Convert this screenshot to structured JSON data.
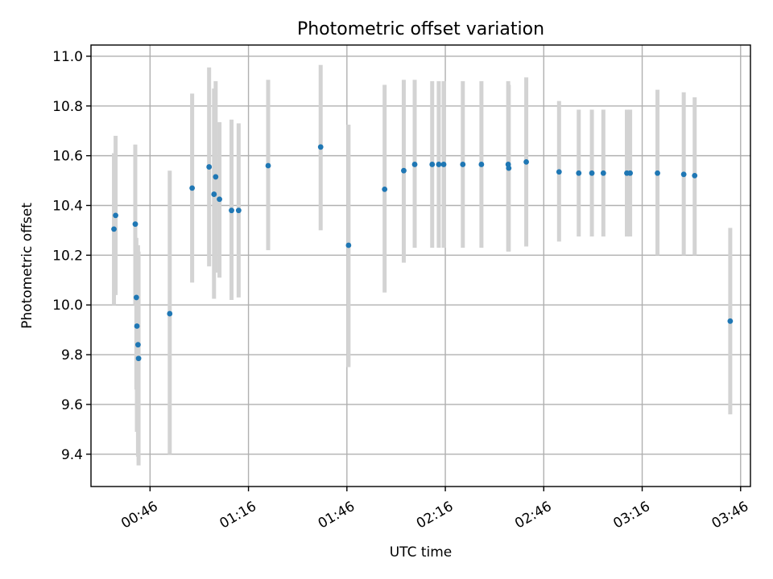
{
  "chart_data": {
    "type": "scatter",
    "title": "Photometric offset variation",
    "xlabel": "UTC time",
    "ylabel": "Photometric offset",
    "xlim": [
      "00:28",
      "03:49"
    ],
    "ylim": [
      9.27,
      11.045
    ],
    "x_ticks": [
      "00:46",
      "01:16",
      "01:46",
      "02:16",
      "02:46",
      "03:16",
      "03:46"
    ],
    "y_ticks": [
      "9.4",
      "9.6",
      "9.8",
      "10.0",
      "10.2",
      "10.4",
      "10.6",
      "10.8",
      "11.0"
    ],
    "grid": true,
    "colors": {
      "point": "#1f77b4",
      "error_bar": "#d3d3d3",
      "grid": "#b0b0b0"
    },
    "points": [
      {
        "x": "00:35:00",
        "y": 10.305,
        "err": [
          10.0,
          10.61
        ]
      },
      {
        "x": "00:35:30",
        "y": 10.36,
        "err": [
          10.04,
          10.68
        ]
      },
      {
        "x": "00:41:30",
        "y": 10.325,
        "err": [
          10.0,
          10.645
        ]
      },
      {
        "x": "00:41:50",
        "y": 10.03,
        "err": [
          9.66,
          10.27
        ]
      },
      {
        "x": "00:42:00",
        "y": 9.915,
        "err": [
          9.49,
          10.22
        ]
      },
      {
        "x": "00:42:20",
        "y": 9.84,
        "err": [
          9.39,
          10.24
        ]
      },
      {
        "x": "00:42:30",
        "y": 9.785,
        "err": [
          9.355,
          10.215
        ]
      },
      {
        "x": "00:52:00",
        "y": 9.965,
        "err": [
          9.4,
          10.54
        ]
      },
      {
        "x": "00:58:50",
        "y": 10.47,
        "err": [
          10.09,
          10.85
        ]
      },
      {
        "x": "01:04:00",
        "y": 10.555,
        "err": [
          10.155,
          10.955
        ]
      },
      {
        "x": "01:05:30",
        "y": 10.445,
        "err": [
          10.025,
          10.87
        ]
      },
      {
        "x": "01:06:00",
        "y": 10.515,
        "err": [
          10.13,
          10.9
        ]
      },
      {
        "x": "01:07:10",
        "y": 10.425,
        "err": [
          10.11,
          10.735
        ]
      },
      {
        "x": "01:10:50",
        "y": 10.38,
        "err": [
          10.02,
          10.745
        ]
      },
      {
        "x": "01:13:00",
        "y": 10.38,
        "err": [
          10.03,
          10.73
        ]
      },
      {
        "x": "01:22:00",
        "y": 10.56,
        "err": [
          10.22,
          10.905
        ]
      },
      {
        "x": "01:38:00",
        "y": 10.635,
        "err": [
          10.3,
          10.965
        ]
      },
      {
        "x": "01:46:30",
        "y": 10.24,
        "err": [
          9.75,
          10.725
        ]
      },
      {
        "x": "01:57:30",
        "y": 10.465,
        "err": [
          10.05,
          10.885
        ]
      },
      {
        "x": "02:03:20",
        "y": 10.54,
        "err": [
          10.17,
          10.905
        ]
      },
      {
        "x": "02:06:40",
        "y": 10.565,
        "err": [
          10.23,
          10.905
        ]
      },
      {
        "x": "02:12:00",
        "y": 10.565,
        "err": [
          10.23,
          10.9
        ]
      },
      {
        "x": "02:14:00",
        "y": 10.565,
        "err": [
          10.23,
          10.9
        ]
      },
      {
        "x": "02:15:30",
        "y": 10.565,
        "err": [
          10.23,
          10.9
        ]
      },
      {
        "x": "02:21:20",
        "y": 10.565,
        "err": [
          10.23,
          10.9
        ]
      },
      {
        "x": "02:27:00",
        "y": 10.565,
        "err": [
          10.23,
          10.9
        ]
      },
      {
        "x": "02:35:10",
        "y": 10.565,
        "err": [
          10.215,
          10.9
        ]
      },
      {
        "x": "02:35:20",
        "y": 10.55,
        "err": [
          10.215,
          10.885
        ]
      },
      {
        "x": "02:40:40",
        "y": 10.575,
        "err": [
          10.235,
          10.915
        ]
      },
      {
        "x": "02:50:40",
        "y": 10.535,
        "err": [
          10.255,
          10.82
        ]
      },
      {
        "x": "02:56:40",
        "y": 10.53,
        "err": [
          10.275,
          10.785
        ]
      },
      {
        "x": "03:00:40",
        "y": 10.53,
        "err": [
          10.275,
          10.785
        ]
      },
      {
        "x": "03:04:10",
        "y": 10.53,
        "err": [
          10.275,
          10.785
        ]
      },
      {
        "x": "03:11:20",
        "y": 10.53,
        "err": [
          10.275,
          10.785
        ]
      },
      {
        "x": "03:12:20",
        "y": 10.53,
        "err": [
          10.275,
          10.785
        ]
      },
      {
        "x": "03:20:40",
        "y": 10.53,
        "err": [
          10.2,
          10.865
        ]
      },
      {
        "x": "03:28:40",
        "y": 10.525,
        "err": [
          10.2,
          10.855
        ]
      },
      {
        "x": "03:32:00",
        "y": 10.52,
        "err": [
          10.2,
          10.835
        ]
      },
      {
        "x": "03:42:50",
        "y": 9.935,
        "err": [
          9.56,
          10.31
        ]
      }
    ]
  }
}
